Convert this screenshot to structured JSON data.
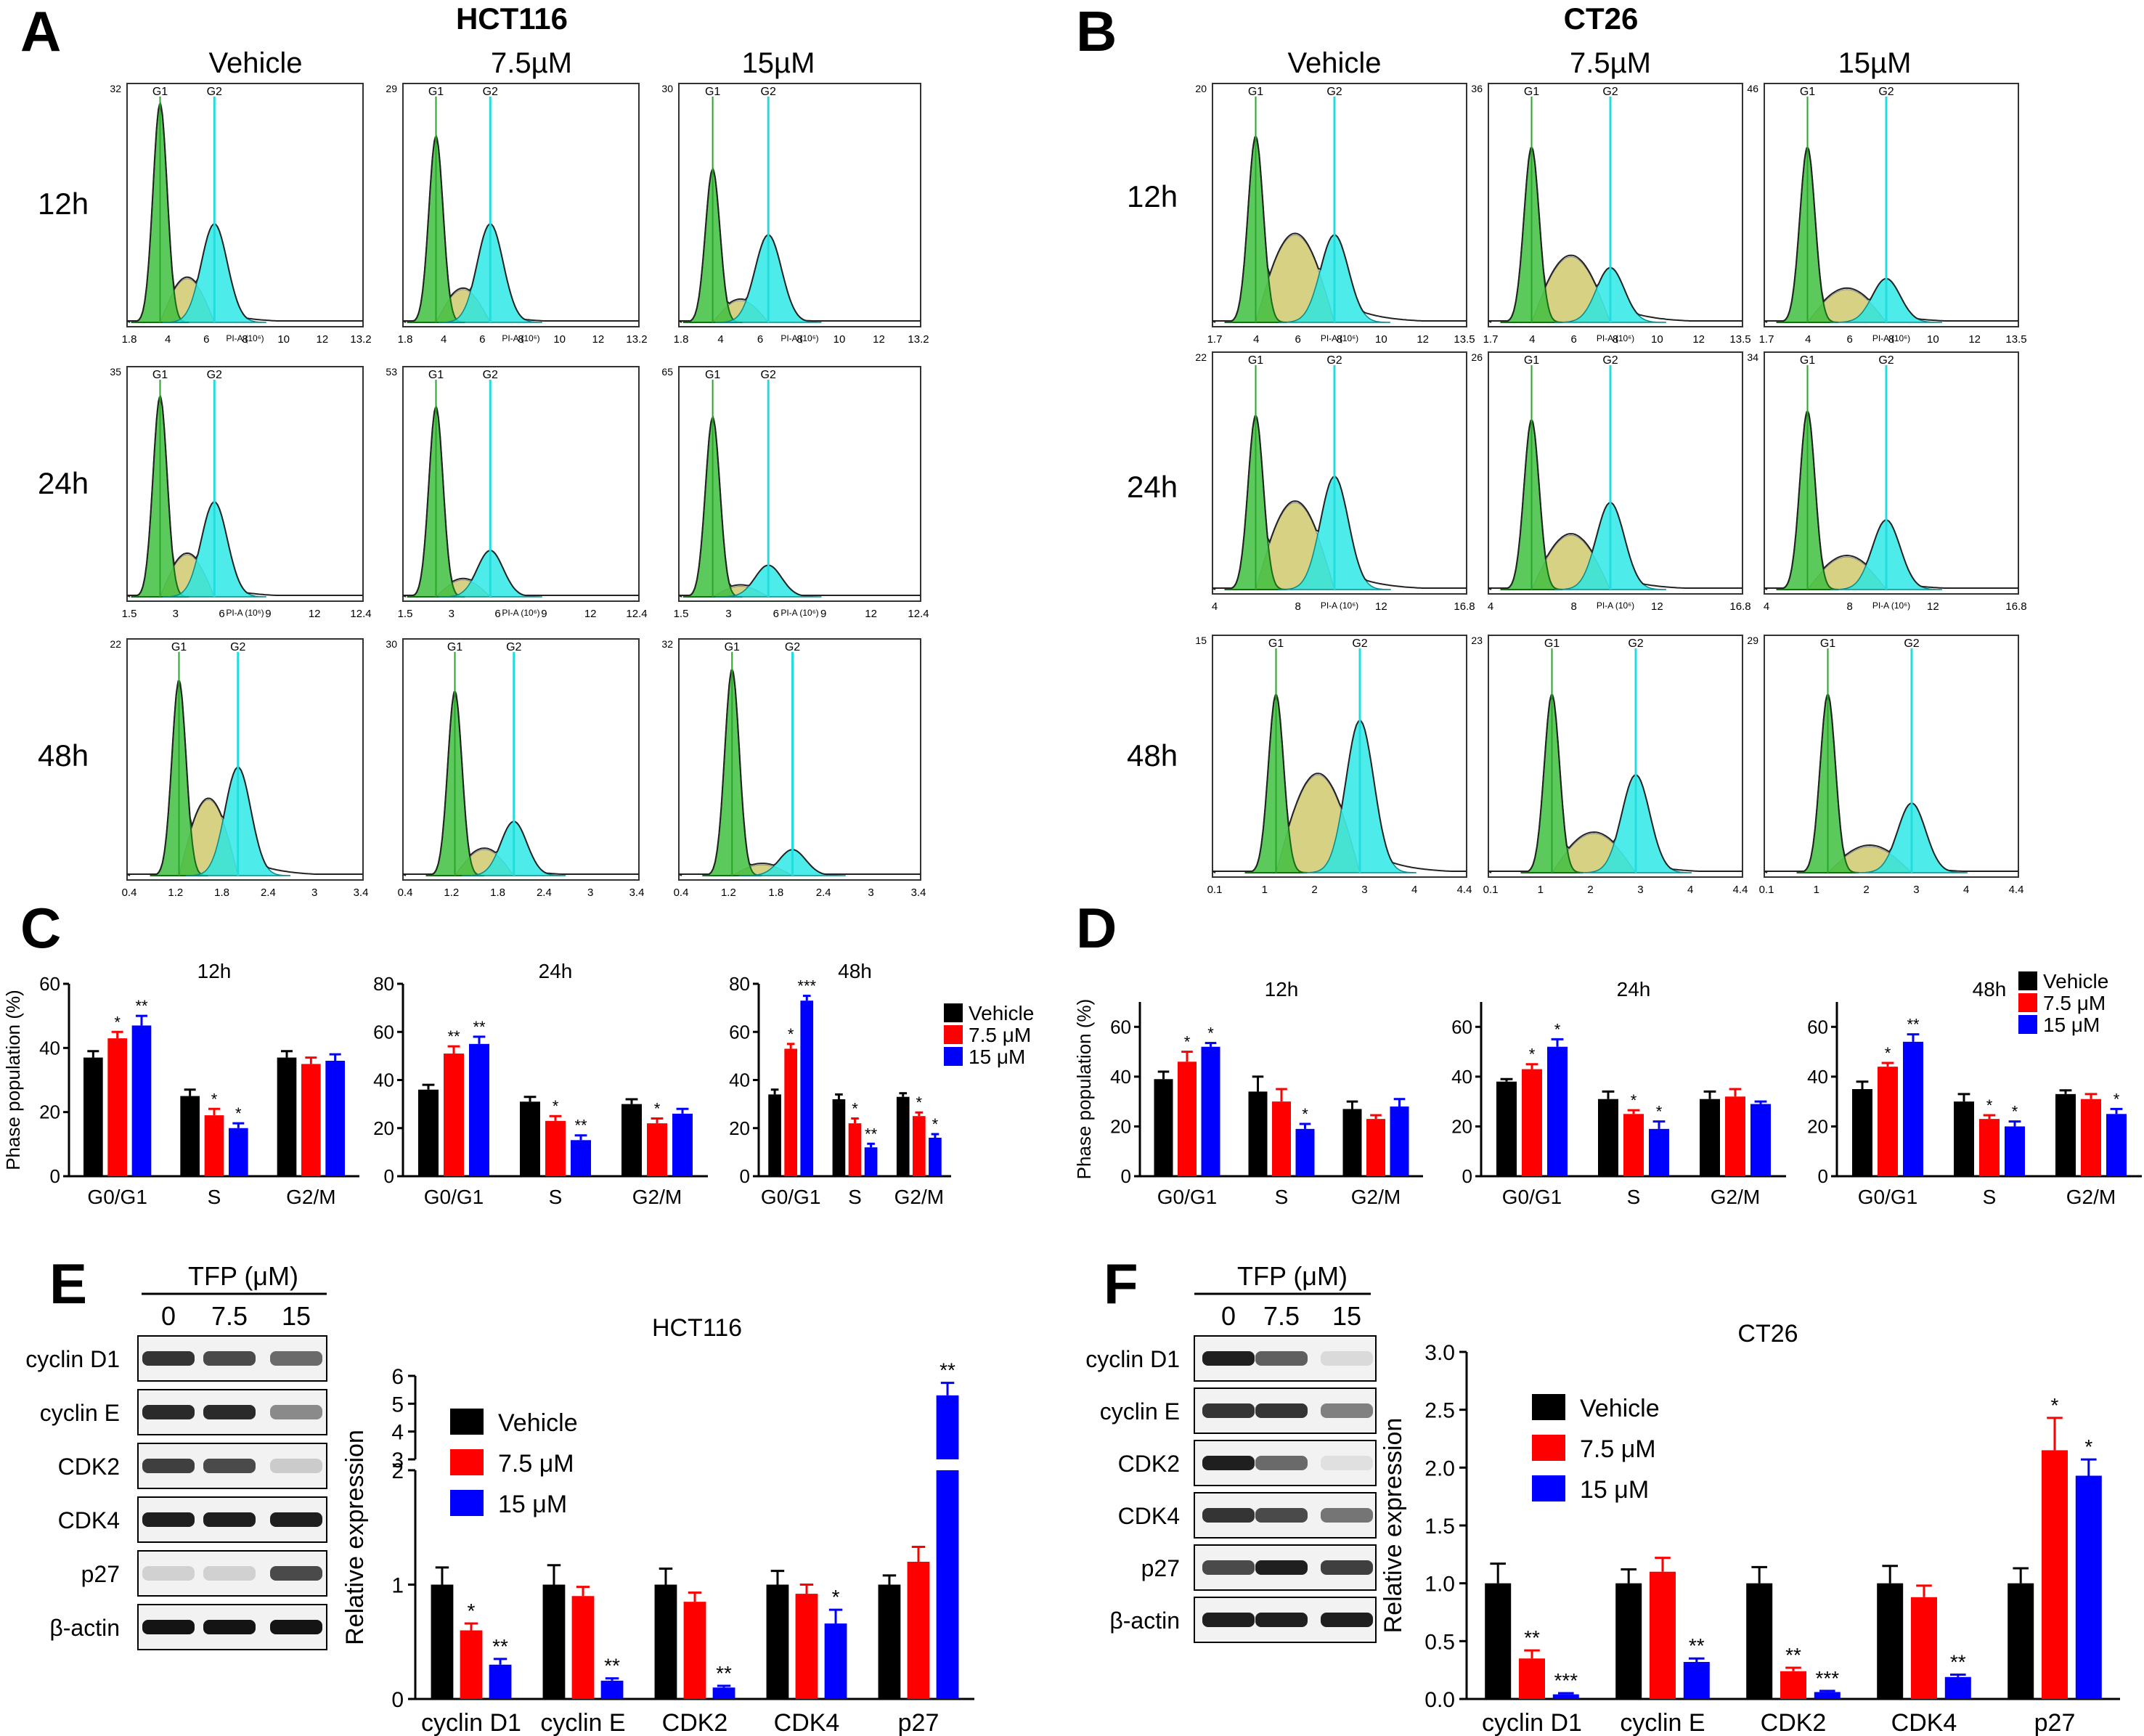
{
  "panels": {
    "A": {
      "letter": "A",
      "title": "HCT116",
      "columns": [
        "Vehicle",
        "7.5µM",
        "15µM"
      ],
      "rows": [
        "12h",
        "24h",
        "48h"
      ],
      "gate_labels": [
        "G1",
        "G2"
      ],
      "x_axis_label": "PI-A (10⁶)",
      "x_ticks": {
        "12h": [
          "1.8",
          "4",
          "6",
          "8",
          "10",
          "12",
          "13.2"
        ],
        "24h": [
          "1.5",
          "3",
          "6",
          "9",
          "12",
          "12.4"
        ],
        "48h": [
          "0.4",
          "1.2",
          "1.8",
          "2.4",
          "3",
          "3.4"
        ]
      },
      "y_max": {
        "12h": [
          "32",
          "29",
          "30"
        ],
        "24h": [
          "35",
          "53",
          "65"
        ],
        "48h": [
          "22",
          "30",
          "32"
        ]
      }
    },
    "B": {
      "letter": "B",
      "title": "CT26",
      "columns": [
        "Vehicle",
        "7.5µM",
        "15µM"
      ],
      "rows": [
        "12h",
        "24h",
        "48h"
      ],
      "gate_labels": [
        "G1",
        "G2"
      ],
      "x_axis_label": "PI-A (10⁶)",
      "x_ticks": {
        "12h": [
          "1.7",
          "4",
          "6",
          "8",
          "10",
          "12",
          "13.5"
        ],
        "24h": [
          "4",
          "8",
          "12",
          "16.8"
        ],
        "48h": [
          "0.1",
          "1",
          "2",
          "3",
          "4",
          "4.4"
        ]
      },
      "y_max": {
        "12h": [
          "20",
          "36",
          "46"
        ],
        "24h": [
          "22",
          "26",
          "34"
        ],
        "48h": [
          "15",
          "23",
          "29"
        ]
      }
    },
    "C": {
      "letter": "C",
      "label": "C"
    },
    "D": {
      "letter": "D",
      "label": "D"
    },
    "E": {
      "letter": "E",
      "blot_header": "TFP (μM)",
      "lanes": [
        "0",
        "7.5",
        "15"
      ],
      "proteins": [
        "cyclin D1",
        "cyclin E",
        "CDK2",
        "CDK4",
        "p27",
        "β-actin"
      ],
      "blot_intensity": [
        [
          0.85,
          0.75,
          0.6
        ],
        [
          0.9,
          0.9,
          0.45
        ],
        [
          0.8,
          0.75,
          0.15
        ],
        [
          0.95,
          0.95,
          0.95
        ],
        [
          0.12,
          0.12,
          0.75
        ],
        [
          1.0,
          1.0,
          1.0
        ]
      ]
    },
    "F": {
      "letter": "F",
      "blot_header": "TFP (μM)",
      "lanes": [
        "0",
        "7.5",
        "15"
      ],
      "proteins": [
        "cyclin D1",
        "cyclin E",
        "CDK2",
        "CDK4",
        "p27",
        "β-actin"
      ],
      "blot_intensity": [
        [
          0.95,
          0.65,
          0.08
        ],
        [
          0.85,
          0.85,
          0.5
        ],
        [
          0.95,
          0.6,
          0.05
        ],
        [
          0.85,
          0.75,
          0.55
        ],
        [
          0.75,
          0.95,
          0.8
        ],
        [
          0.95,
          0.95,
          0.95
        ]
      ]
    }
  },
  "legend": {
    "labels": [
      "Vehicle",
      "7.5 μM",
      "15 μM"
    ]
  },
  "colors": {
    "vehicle": "#000000",
    "mid": "#ff0000",
    "high": "#0000ff",
    "g1_fill": "#3fbf3f",
    "s_fill": "#c8c25a",
    "g2_fill": "#22e6e6",
    "gate_line": "#22dddd"
  },
  "chart_data": [
    {
      "panel": "C",
      "type": "bar",
      "title": "12h",
      "ylabel": "Phase population (%)",
      "ylim": [
        0,
        60
      ],
      "yticks": [
        0,
        20,
        40,
        60
      ],
      "categories": [
        "G0/G1",
        "S",
        "G2/M"
      ],
      "series": [
        {
          "name": "Vehicle",
          "values": [
            37,
            25,
            37
          ],
          "errors": [
            2,
            2,
            2
          ]
        },
        {
          "name": "7.5 μM",
          "values": [
            43,
            19,
            35
          ],
          "errors": [
            2,
            2,
            2
          ]
        },
        {
          "name": "15 μM",
          "values": [
            47,
            15,
            36
          ],
          "errors": [
            3,
            1.5,
            2
          ]
        }
      ],
      "significance": [
        [
          "",
          "",
          ""
        ],
        [
          "*",
          "*",
          ""
        ],
        [
          "**",
          "*",
          ""
        ]
      ]
    },
    {
      "panel": "C",
      "type": "bar",
      "title": "24h",
      "ylabel": "",
      "ylim": [
        0,
        80
      ],
      "yticks": [
        0,
        20,
        40,
        60,
        80
      ],
      "categories": [
        "G0/G1",
        "S",
        "G2/M"
      ],
      "series": [
        {
          "name": "Vehicle",
          "values": [
            36,
            31,
            30
          ],
          "errors": [
            2,
            2,
            2
          ]
        },
        {
          "name": "7.5 μM",
          "values": [
            51,
            23,
            22
          ],
          "errors": [
            3,
            2,
            2
          ]
        },
        {
          "name": "15 μM",
          "values": [
            55,
            15,
            26
          ],
          "errors": [
            3,
            2,
            2
          ]
        }
      ],
      "significance": [
        [
          "",
          "",
          ""
        ],
        [
          "**",
          "*",
          "*"
        ],
        [
          "**",
          "**",
          ""
        ]
      ]
    },
    {
      "panel": "C",
      "type": "bar",
      "title": "48h",
      "ylabel": "",
      "ylim": [
        0,
        80
      ],
      "yticks": [
        0,
        20,
        40,
        60,
        80
      ],
      "categories": [
        "G0/G1",
        "S",
        "G2/M"
      ],
      "series": [
        {
          "name": "Vehicle",
          "values": [
            34,
            32,
            33
          ],
          "errors": [
            2,
            2,
            1.5
          ]
        },
        {
          "name": "7.5 μM",
          "values": [
            53,
            22,
            25
          ],
          "errors": [
            2,
            2,
            1.5
          ]
        },
        {
          "name": "15 μM",
          "values": [
            73,
            12,
            16
          ],
          "errors": [
            2,
            1.5,
            1.5
          ]
        }
      ],
      "significance": [
        [
          "",
          "",
          ""
        ],
        [
          "*",
          "*",
          "*"
        ],
        [
          "***",
          "**",
          "*"
        ]
      ]
    },
    {
      "panel": "D",
      "type": "bar",
      "title": "12h",
      "ylabel": "Phase population (%)",
      "ylim": [
        0,
        70
      ],
      "yticks": [
        0,
        20,
        40,
        60
      ],
      "categories": [
        "G0/G1",
        "S",
        "G2/M"
      ],
      "series": [
        {
          "name": "Vehicle",
          "values": [
            39,
            34,
            27
          ],
          "errors": [
            3,
            6,
            3
          ]
        },
        {
          "name": "7.5 μM",
          "values": [
            46,
            30,
            23
          ],
          "errors": [
            4,
            5,
            1.5
          ]
        },
        {
          "name": "15 μM",
          "values": [
            52,
            19,
            28
          ],
          "errors": [
            1.5,
            2,
            3
          ]
        }
      ],
      "significance": [
        [
          "",
          "",
          ""
        ],
        [
          "*",
          "",
          ""
        ],
        [
          "*",
          "*",
          ""
        ]
      ]
    },
    {
      "panel": "D",
      "type": "bar",
      "title": "24h",
      "ylabel": "",
      "ylim": [
        0,
        70
      ],
      "yticks": [
        0,
        20,
        40,
        60
      ],
      "categories": [
        "G0/G1",
        "S",
        "G2/M"
      ],
      "series": [
        {
          "name": "Vehicle",
          "values": [
            38,
            31,
            31
          ],
          "errors": [
            1,
            3,
            3
          ]
        },
        {
          "name": "7.5 μM",
          "values": [
            43,
            25,
            32
          ],
          "errors": [
            2,
            1.5,
            3
          ]
        },
        {
          "name": "15 μM",
          "values": [
            52,
            19,
            29
          ],
          "errors": [
            3,
            3,
            1
          ]
        }
      ],
      "significance": [
        [
          "",
          "",
          ""
        ],
        [
          "*",
          "*",
          ""
        ],
        [
          "*",
          "*",
          ""
        ]
      ]
    },
    {
      "panel": "D",
      "type": "bar",
      "title": "48h",
      "ylabel": "",
      "ylim": [
        0,
        70
      ],
      "yticks": [
        0,
        20,
        40,
        60
      ],
      "categories": [
        "G0/G1",
        "S",
        "G2/M"
      ],
      "series": [
        {
          "name": "Vehicle",
          "values": [
            35,
            30,
            33
          ],
          "errors": [
            3,
            3,
            1.5
          ]
        },
        {
          "name": "7.5 μM",
          "values": [
            44,
            23,
            31
          ],
          "errors": [
            1.5,
            1.5,
            2
          ]
        },
        {
          "name": "15 μM",
          "values": [
            54,
            20,
            25
          ],
          "errors": [
            3,
            2,
            2
          ]
        }
      ],
      "significance": [
        [
          "",
          "",
          ""
        ],
        [
          "*",
          "*",
          ""
        ],
        [
          "**",
          "*",
          "*"
        ]
      ]
    },
    {
      "panel": "E",
      "type": "bar",
      "title": "HCT116",
      "ylabel": "Relative expression",
      "ylim_lower": [
        0,
        2
      ],
      "ylim_upper": [
        3,
        6
      ],
      "yticks": [
        "0",
        "1",
        "2",
        "3",
        "4",
        "5",
        "6"
      ],
      "categories": [
        "cyclin D1",
        "cyclin E",
        "CDK2",
        "CDK4",
        "p27"
      ],
      "series": [
        {
          "name": "Vehicle",
          "values": [
            1.0,
            1.0,
            1.0,
            1.0,
            1.0
          ],
          "errors": [
            0.15,
            0.17,
            0.14,
            0.12,
            0.08
          ]
        },
        {
          "name": "7.5 μM",
          "values": [
            0.6,
            0.9,
            0.85,
            0.92,
            1.2
          ],
          "errors": [
            0.06,
            0.08,
            0.08,
            0.08,
            0.13
          ]
        },
        {
          "name": "15 μM",
          "values": [
            0.3,
            0.16,
            0.1,
            0.66,
            5.3
          ],
          "errors": [
            0.05,
            0.02,
            0.015,
            0.12,
            0.45
          ]
        }
      ],
      "significance": [
        [
          "",
          "",
          "",
          "",
          ""
        ],
        [
          "*",
          "",
          "",
          "",
          ""
        ],
        [
          "**",
          "**",
          "**",
          "*",
          "**"
        ]
      ]
    },
    {
      "panel": "F",
      "type": "bar",
      "title": "CT26",
      "ylabel": "Relative expression",
      "ylim": [
        0,
        3
      ],
      "yticks": [
        "0.0",
        "0.5",
        "1.0",
        "1.5",
        "2.0",
        "2.5",
        "3.0"
      ],
      "categories": [
        "cyclin D1",
        "cyclin E",
        "CDK2",
        "CDK4",
        "p27"
      ],
      "series": [
        {
          "name": "Vehicle",
          "values": [
            1.0,
            1.0,
            1.0,
            1.0,
            1.0
          ],
          "errors": [
            0.17,
            0.12,
            0.14,
            0.15,
            0.13
          ]
        },
        {
          "name": "7.5 μM",
          "values": [
            0.35,
            1.1,
            0.24,
            0.88,
            2.15
          ],
          "errors": [
            0.07,
            0.12,
            0.03,
            0.1,
            0.28
          ]
        },
        {
          "name": "15 μM",
          "values": [
            0.04,
            0.32,
            0.06,
            0.19,
            1.93
          ],
          "errors": [
            0.01,
            0.03,
            0.01,
            0.02,
            0.14
          ]
        }
      ],
      "significance": [
        [
          "",
          "",
          "",
          "",
          ""
        ],
        [
          "**",
          "",
          "**",
          "",
          "*"
        ],
        [
          "***",
          "**",
          "***",
          "**",
          "*"
        ]
      ]
    }
  ]
}
